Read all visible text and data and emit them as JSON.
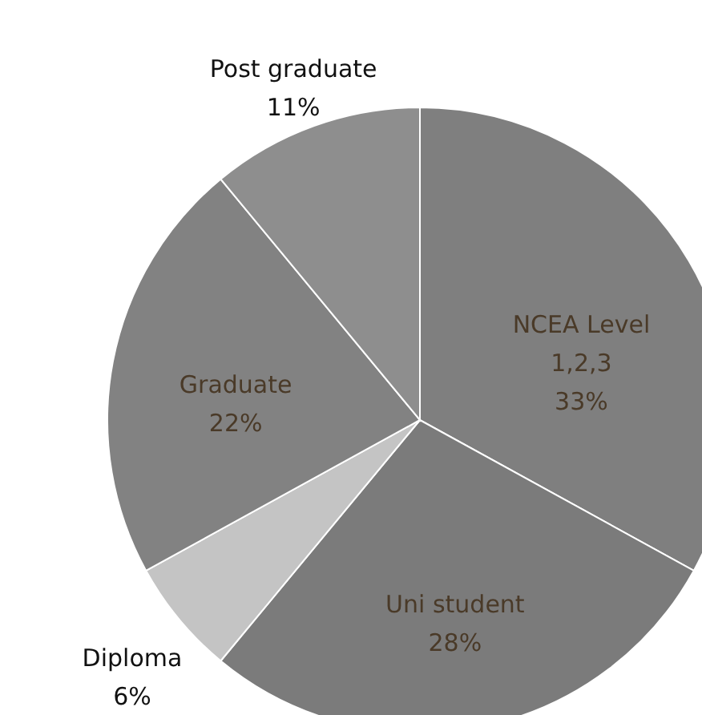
{
  "chart_data": {
    "type": "pie",
    "categories": [
      "NCEA Level 1,2,3",
      "Uni student",
      "Diploma",
      "Graduate",
      "Post graduate"
    ],
    "values": [
      33,
      28,
      6,
      22,
      11
    ],
    "colors": [
      "#7f7f7f",
      "#7b7b7b",
      "#c4c4c4",
      "#828282",
      "#8e8e8e"
    ],
    "value_labels": [
      "33%",
      "28%",
      "6%",
      "22%",
      "11%"
    ]
  }
}
